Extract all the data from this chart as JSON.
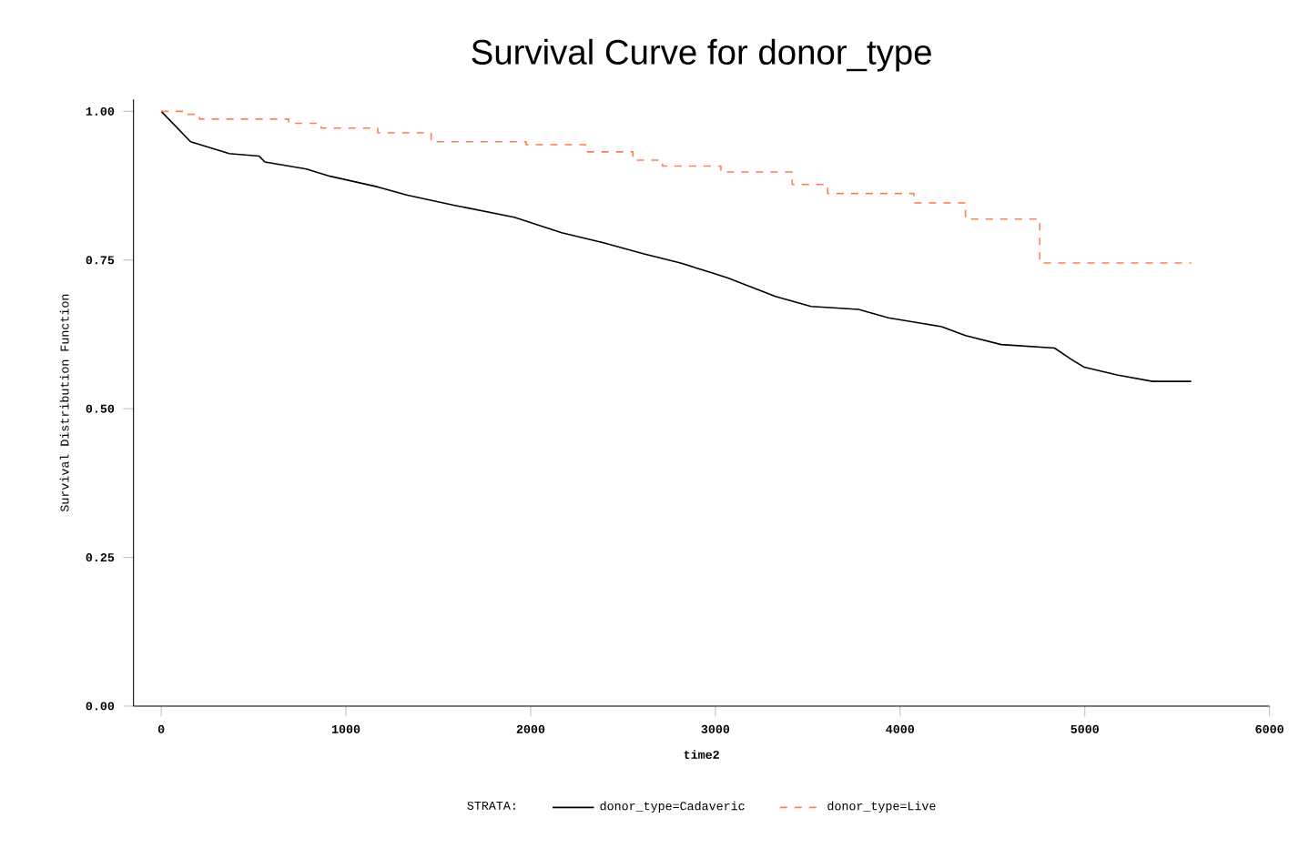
{
  "chart_data": {
    "type": "line",
    "title": "Survival Curve for donor_type",
    "xlabel": "time2",
    "ylabel": "Survival Distribution Function",
    "legend_title": "STRATA:",
    "legend": "bottom",
    "marker": "none",
    "xlim": [
      -150,
      6000
    ],
    "ylim": [
      0,
      1.02
    ],
    "xticks": [
      0,
      1000,
      2000,
      3000,
      4000,
      5000,
      6000
    ],
    "yticks": [
      {
        "value": 0,
        "label": "0.00"
      },
      {
        "value": 0.25,
        "label": "0.25"
      },
      {
        "value": 0.5,
        "label": "0.50"
      },
      {
        "value": 0.75,
        "label": "0.75"
      },
      {
        "value": 1,
        "label": "1.00"
      }
    ],
    "series": [
      {
        "name": "donor_type=Cadaveric",
        "color": "#000000",
        "line_style": "solid",
        "x": [
          0,
          159,
          368,
          529,
          561,
          786,
          914,
          1172,
          1333,
          1589,
          1911,
          2168,
          2393,
          2618,
          2811,
          2988,
          3068,
          3325,
          3518,
          3775,
          3936,
          4225,
          4354,
          4547,
          4836,
          4932,
          4997,
          5174,
          5366,
          5576
        ],
        "values": [
          1.0,
          0.949,
          0.929,
          0.925,
          0.915,
          0.903,
          0.891,
          0.873,
          0.859,
          0.842,
          0.822,
          0.796,
          0.779,
          0.76,
          0.745,
          0.728,
          0.72,
          0.689,
          0.672,
          0.667,
          0.653,
          0.638,
          0.623,
          0.608,
          0.602,
          0.582,
          0.57,
          0.557,
          0.546,
          0.546
        ]
      },
      {
        "name": "donor_type=Live",
        "color": "#ff7f50",
        "type": "step",
        "line_style": "dashed",
        "x": [
          0,
          143,
          207,
          690,
          866,
          1172,
          1461,
          1975,
          2297,
          2554,
          2714,
          3030,
          3416,
          3608,
          4074,
          4354,
          4756,
          5576
        ],
        "values": [
          1.0,
          0.995,
          0.987,
          0.98,
          0.972,
          0.964,
          0.949,
          0.944,
          0.932,
          0.918,
          0.908,
          0.898,
          0.877,
          0.862,
          0.846,
          0.819,
          0.745,
          0.745
        ]
      }
    ]
  }
}
